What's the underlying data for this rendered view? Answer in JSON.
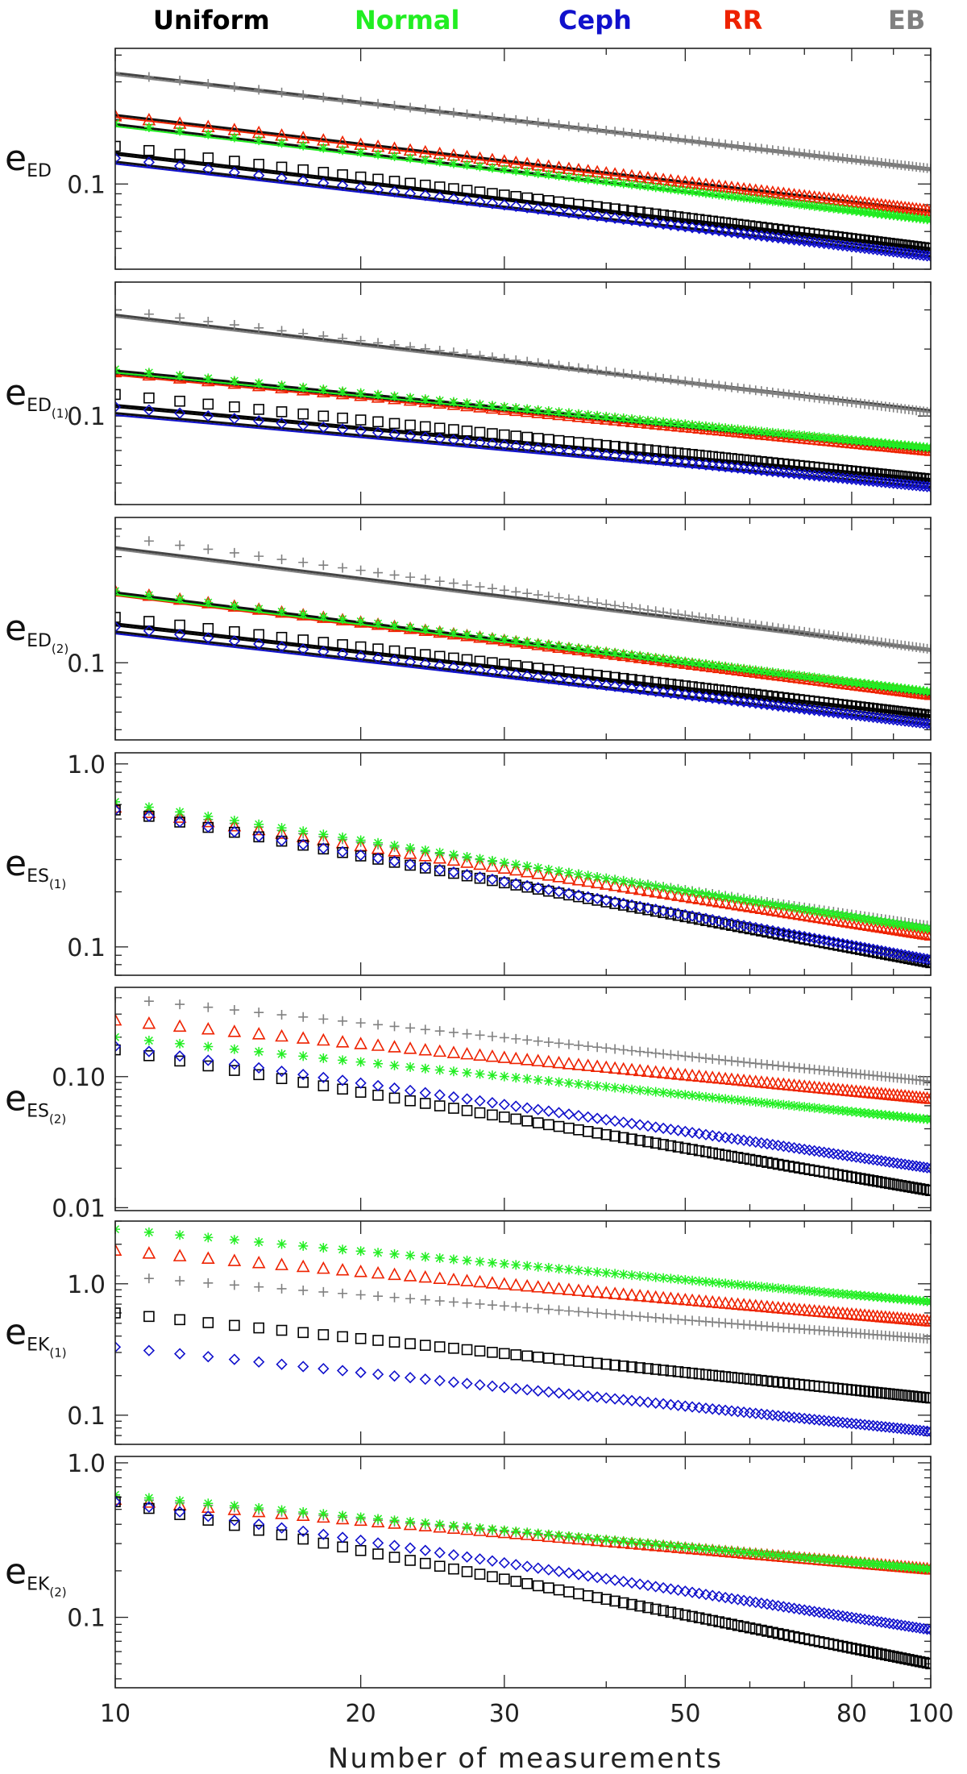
{
  "colors": {
    "Uniform": "#000000",
    "Normal": "#22ee22",
    "Ceph": "#1111cc",
    "RR": "#ee2200",
    "EB": "#808080"
  },
  "legend": [
    {
      "name": "Uniform",
      "label": "Uniform",
      "marker": "square"
    },
    {
      "name": "Normal",
      "label": "Normal",
      "marker": "asterisk"
    },
    {
      "name": "Ceph",
      "label": "Ceph",
      "marker": "diamond"
    },
    {
      "name": "RR",
      "label": "RR",
      "marker": "triangle"
    },
    {
      "name": "EB",
      "label": "EB",
      "marker": "plus"
    }
  ],
  "chart_data": {
    "type": "scatter",
    "xlabel": "Number of measurements",
    "xscale": "log",
    "xlim": [
      10,
      100
    ],
    "xticks": [
      10,
      20,
      30,
      50,
      80,
      100
    ],
    "xticklabels": [
      "10",
      "20",
      "30",
      "50",
      "80",
      "100"
    ],
    "panels": [
      {
        "id": "ED",
        "ylabel_main": "e",
        "ylabel_sub": "ED",
        "ylabel_subsub": "",
        "ylim": [
          0.04,
          0.43
        ],
        "yticks": [
          0.1
        ],
        "yticklabels": [
          "0.1"
        ],
        "fit_lines": true,
        "series": [
          {
            "name": "Uniform",
            "y10": 0.15,
            "y100": 0.05,
            "fit10": 0.14,
            "fit100": 0.05
          },
          {
            "name": "Normal",
            "y10": 0.192,
            "y100": 0.068,
            "fit10": 0.19,
            "fit100": 0.068
          },
          {
            "name": "Ceph",
            "y10": 0.132,
            "y100": 0.046,
            "fit10": 0.127,
            "fit100": 0.046
          },
          {
            "name": "RR",
            "y10": 0.208,
            "y100": 0.075,
            "fit10": 0.21,
            "fit100": 0.075
          },
          {
            "name": "EB",
            "y10": 0.33,
            "y100": 0.118,
            "fit10": 0.33,
            "fit100": 0.118
          }
        ]
      },
      {
        "id": "ED1",
        "ylabel_main": "e",
        "ylabel_sub": "ED",
        "ylabel_subsub": "(1)",
        "ylim": [
          0.04,
          0.4
        ],
        "yticks": [
          0.1
        ],
        "yticklabels": [
          "0.1"
        ],
        "fit_lines": true,
        "series": [
          {
            "name": "Uniform",
            "y10": 0.125,
            "y100": 0.052,
            "fit10": 0.112,
            "fit100": 0.052
          },
          {
            "name": "Normal",
            "y10": 0.162,
            "y100": 0.072,
            "fit10": 0.16,
            "fit100": 0.072
          },
          {
            "name": "Ceph",
            "y10": 0.11,
            "y100": 0.048,
            "fit10": 0.103,
            "fit100": 0.048
          },
          {
            "name": "RR",
            "y10": 0.158,
            "y100": 0.07,
            "fit10": 0.156,
            "fit100": 0.07
          },
          {
            "name": "EB",
            "y10": 0.3,
            "y100": 0.104,
            "fit10": 0.285,
            "fit100": 0.106
          }
        ]
      },
      {
        "id": "ED2",
        "ylabel_main": "e",
        "ylabel_sub": "ED",
        "ylabel_subsub": "(2)",
        "ylim": [
          0.045,
          0.45
        ],
        "yticks": [
          0.1
        ],
        "yticklabels": [
          "0.1"
        ],
        "fit_lines": true,
        "series": [
          {
            "name": "Uniform",
            "y10": 0.16,
            "y100": 0.058,
            "fit10": 0.15,
            "fit100": 0.058
          },
          {
            "name": "Normal",
            "y10": 0.21,
            "y100": 0.074,
            "fit10": 0.207,
            "fit100": 0.074
          },
          {
            "name": "Ceph",
            "y10": 0.145,
            "y100": 0.053,
            "fit10": 0.138,
            "fit100": 0.053
          },
          {
            "name": "RR",
            "y10": 0.21,
            "y100": 0.072,
            "fit10": 0.205,
            "fit100": 0.072
          },
          {
            "name": "EB",
            "y10": 0.37,
            "y100": 0.115,
            "fit10": 0.33,
            "fit100": 0.115
          }
        ]
      },
      {
        "id": "ES1",
        "ylabel_main": "e",
        "ylabel_sub": "ES",
        "ylabel_subsub": "(1)",
        "ylim": [
          0.07,
          1.15
        ],
        "yticks": [
          0.1,
          1.0
        ],
        "yticklabels": [
          "0.1",
          "1.0"
        ],
        "fit_lines": false,
        "series": [
          {
            "name": "Uniform",
            "y10": 0.56,
            "y100": 0.082
          },
          {
            "name": "Normal",
            "y10": 0.62,
            "y100": 0.125
          },
          {
            "name": "Ceph",
            "y10": 0.56,
            "y100": 0.085
          },
          {
            "name": "RR",
            "y10": 0.58,
            "y100": 0.116
          },
          {
            "name": "EB",
            "y10": 0.59,
            "y100": 0.13
          }
        ]
      },
      {
        "id": "ES2",
        "ylabel_main": "e",
        "ylabel_sub": "ES",
        "ylabel_subsub": "(2)",
        "ylim": [
          0.0095,
          0.48
        ],
        "yticks": [
          0.01,
          0.1
        ],
        "yticklabels": [
          "0.01",
          "0.10"
        ],
        "fit_lines": false,
        "series": [
          {
            "name": "Uniform",
            "y10": 0.16,
            "y100": 0.0135
          },
          {
            "name": "Normal",
            "y10": 0.2,
            "y100": 0.047
          },
          {
            "name": "Ceph",
            "y10": 0.17,
            "y100": 0.02
          },
          {
            "name": "RR",
            "y10": 0.27,
            "y100": 0.068
          },
          {
            "name": "EB",
            "y10": 0.4,
            "y100": 0.092
          }
        ]
      },
      {
        "id": "EK1",
        "ylabel_main": "e",
        "ylabel_sub": "EK",
        "ylabel_subsub": "(1)",
        "ylim": [
          0.06,
          3.0
        ],
        "yticks": [
          0.1,
          1.0
        ],
        "yticklabels": [
          "0.1",
          "1.0"
        ],
        "fit_lines": false,
        "series": [
          {
            "name": "Uniform",
            "y10": 0.6,
            "y100": 0.135
          },
          {
            "name": "Normal",
            "y10": 2.6,
            "y100": 0.73
          },
          {
            "name": "Ceph",
            "y10": 0.33,
            "y100": 0.075
          },
          {
            "name": "RR",
            "y10": 1.8,
            "y100": 0.52
          },
          {
            "name": "EB",
            "y10": 1.15,
            "y100": 0.38
          }
        ]
      },
      {
        "id": "EK2",
        "ylabel_main": "e",
        "ylabel_sub": "EK",
        "ylabel_subsub": "(2)",
        "ylim": [
          0.035,
          1.1
        ],
        "yticks": [
          0.1,
          1.0
        ],
        "yticklabels": [
          "0.1",
          "1.0"
        ],
        "fit_lines": false,
        "series": [
          {
            "name": "Uniform",
            "y10": 0.56,
            "y100": 0.05
          },
          {
            "name": "Normal",
            "y10": 0.62,
            "y100": 0.205
          },
          {
            "name": "Ceph",
            "y10": 0.56,
            "y100": 0.083
          },
          {
            "name": "RR",
            "y10": 0.58,
            "y100": 0.205
          },
          {
            "name": "EB",
            "y10": 0.6,
            "y100": 0.205
          }
        ]
      }
    ]
  }
}
